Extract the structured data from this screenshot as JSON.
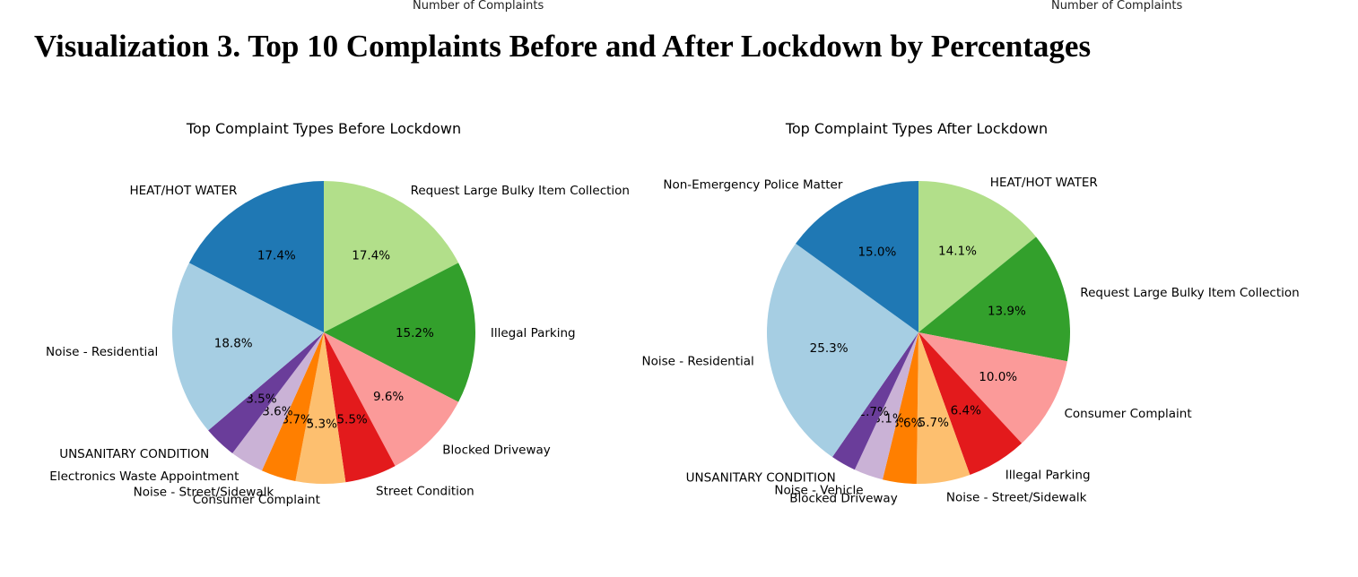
{
  "top_labels": {
    "left": "Number of Complaints",
    "right": "Number of Complaints"
  },
  "page_title": "Visualization 3. Top 10 Complaints Before and After Lockdown by Percentages",
  "chart_data": [
    {
      "type": "pie",
      "title": "Top Complaint Types Before Lockdown",
      "slices": [
        {
          "label": "Request Large Bulky Item Collection",
          "value": 17.4,
          "pct": "17.4%",
          "color": "#b2df8a"
        },
        {
          "label": "Illegal Parking",
          "value": 15.2,
          "pct": "15.2%",
          "color": "#33a02c"
        },
        {
          "label": "Blocked Driveway",
          "value": 9.6,
          "pct": "9.6%",
          "color": "#fb9a99"
        },
        {
          "label": "Street Condition",
          "value": 5.5,
          "pct": "5.5%",
          "color": "#e31a1c"
        },
        {
          "label": "Consumer Complaint",
          "value": 5.3,
          "pct": "5.3%",
          "color": "#fdbf6f"
        },
        {
          "label": "Noise - Street/Sidewalk",
          "value": 3.7,
          "pct": "3.7%",
          "color": "#ff7f00"
        },
        {
          "label": "Electronics Waste Appointment",
          "value": 3.6,
          "pct": "3.6%",
          "color": "#cab2d6"
        },
        {
          "label": "UNSANITARY CONDITION",
          "value": 3.5,
          "pct": "3.5%",
          "color": "#6a3d9a"
        },
        {
          "label": "Noise - Residential",
          "value": 18.8,
          "pct": "18.8%",
          "color": "#a6cee3"
        },
        {
          "label": "HEAT/HOT WATER",
          "value": 17.4,
          "pct": "17.4%",
          "color": "#1f78b4"
        }
      ]
    },
    {
      "type": "pie",
      "title": "Top Complaint Types After Lockdown",
      "slices": [
        {
          "label": "HEAT/HOT WATER",
          "value": 14.1,
          "pct": "14.1%",
          "color": "#b2df8a"
        },
        {
          "label": "Request Large Bulky Item Collection",
          "value": 13.9,
          "pct": "13.9%",
          "color": "#33a02c"
        },
        {
          "label": "Consumer Complaint",
          "value": 10.0,
          "pct": "10.0%",
          "color": "#fb9a99"
        },
        {
          "label": "Illegal Parking",
          "value": 6.4,
          "pct": "6.4%",
          "color": "#e31a1c"
        },
        {
          "label": "Noise - Street/Sidewalk",
          "value": 5.7,
          "pct": "5.7%",
          "color": "#fdbf6f"
        },
        {
          "label": "Blocked Driveway",
          "value": 3.6,
          "pct": "3.6%",
          "color": "#ff7f00"
        },
        {
          "label": "Noise - Vehicle",
          "value": 3.1,
          "pct": "3.1%",
          "color": "#cab2d6"
        },
        {
          "label": "UNSANITARY CONDITION",
          "value": 2.7,
          "pct": "2.7%",
          "color": "#6a3d9a"
        },
        {
          "label": "Noise - Residential",
          "value": 25.3,
          "pct": "25.3%",
          "color": "#a6cee3"
        },
        {
          "label": "Non-Emergency Police Matter",
          "value": 15.0,
          "pct": "15.0%",
          "color": "#1f78b4"
        }
      ]
    }
  ]
}
